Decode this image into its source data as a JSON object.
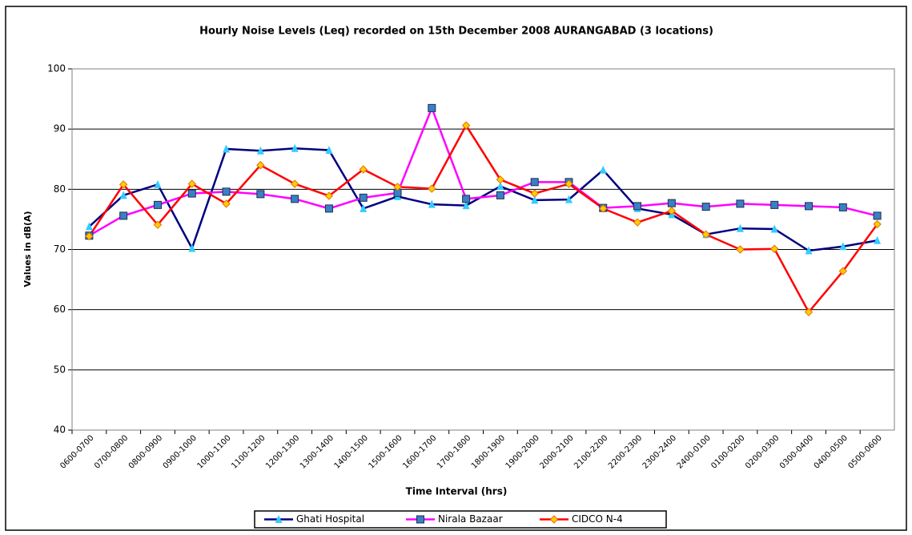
{
  "chart_data": {
    "type": "line",
    "title": "Hourly Noise Levels (Leq) recorded on 15th December 2008 AURANGABAD (3 locations)",
    "x_label": "Time Interval (hrs)",
    "y_label": "Values in dB(A)",
    "categories": [
      "0600-0700",
      "0700-0800",
      "0800-0900",
      "0900-1000",
      "1000-1100",
      "1100-1200",
      "1200-1300",
      "1300-1400",
      "1400-1500",
      "1500-1600",
      "1600-1700",
      "1700-1800",
      "1800-1900",
      "1900-2000",
      "2000-2100",
      "2100-2200",
      "2200-2300",
      "2300-2400",
      "2400-0100",
      "0100-0200",
      "0200-0300",
      "0300-0400",
      "0400-0500",
      "0500-0600"
    ],
    "series": [
      {
        "name": "Ghati Hospital",
        "color": "#000080",
        "marker": "triangle",
        "marker_color": "#33ccff",
        "values": [
          73.8,
          79.0,
          80.8,
          70.2,
          86.7,
          86.4,
          86.8,
          86.5,
          76.8,
          78.8,
          77.5,
          77.3,
          80.5,
          78.2,
          78.3,
          83.2,
          76.8,
          75.8,
          72.5,
          73.5,
          73.4,
          69.8,
          70.5,
          71.5
        ]
      },
      {
        "name": "Nirala Bazaar",
        "color": "#ff00ff",
        "marker": "square",
        "marker_color": "#3b7fc4",
        "values": [
          72.3,
          75.6,
          77.4,
          79.3,
          79.6,
          79.2,
          78.4,
          76.8,
          78.6,
          79.4,
          93.5,
          78.4,
          79.0,
          81.2,
          81.2,
          76.9,
          77.2,
          77.7,
          77.1,
          77.6,
          77.4,
          77.2,
          77.0,
          75.6
        ]
      },
      {
        "name": "CIDCO N-4",
        "color": "#ff0000",
        "marker": "diamond",
        "marker_color": "#ffcc00",
        "values": [
          72.2,
          80.8,
          74.1,
          80.9,
          77.6,
          84.0,
          80.9,
          78.9,
          83.3,
          80.4,
          80.1,
          90.6,
          81.6,
          79.3,
          80.9,
          76.8,
          74.5,
          76.4,
          72.5,
          70.0,
          70.1,
          59.6,
          66.4,
          74.2
        ]
      }
    ],
    "ylim": [
      40,
      100
    ],
    "yticks": [
      40,
      50,
      60,
      70,
      80,
      90,
      100
    ],
    "grid": true,
    "legend": "bottom"
  }
}
